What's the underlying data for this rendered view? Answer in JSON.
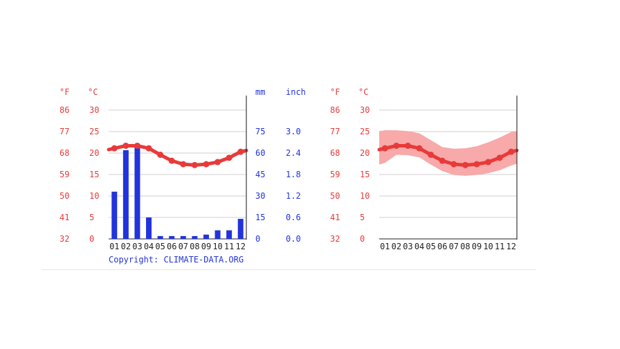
{
  "units": {
    "fahrenheit": "°F",
    "celsius": "°C",
    "mm": "mm",
    "inch": "inch"
  },
  "copyright": "Copyright: CLIMATE-DATA.ORG",
  "colors": {
    "temperature": "#e83a3a",
    "precipitation": "#2233dd",
    "band": "#f8a9a9"
  },
  "chart_data": [
    {
      "type": "bar",
      "categories": [
        "01",
        "02",
        "03",
        "04",
        "05",
        "06",
        "07",
        "08",
        "09",
        "10",
        "11",
        "12"
      ],
      "series": [
        {
          "values": [
            33,
            62,
            64,
            15,
            2,
            2,
            2,
            2,
            3,
            6,
            6,
            14
          ]
        },
        {
          "type": "line",
          "values": [
            21.1,
            21.7,
            21.7,
            21.1,
            19.6,
            18.2,
            17.4,
            17.2,
            17.4,
            17.9,
            18.9,
            20.3
          ]
        }
      ],
      "y_celsius_ticks": [
        "0",
        "5",
        "10",
        "15",
        "20",
        "25",
        "30"
      ],
      "y_fahrenheit_ticks": [
        "32",
        "41",
        "50",
        "59",
        "68",
        "77",
        "86"
      ],
      "y_mm_ticks": [
        "0",
        "15",
        "30",
        "45",
        "60",
        "75"
      ],
      "y_inch_ticks": [
        "0.0",
        "0.6",
        "1.2",
        "1.8",
        "2.4",
        "3.0"
      ],
      "ylim_celsius": [
        0,
        30
      ],
      "ylim_mm": [
        0,
        90
      ],
      "grid": true
    },
    {
      "type": "line",
      "categories": [
        "01",
        "02",
        "03",
        "04",
        "05",
        "06",
        "07",
        "08",
        "09",
        "10",
        "11",
        "12"
      ],
      "series": [
        {
          "values": [
            21.1,
            21.7,
            21.7,
            21.1,
            19.6,
            18.2,
            17.4,
            17.2,
            17.4,
            17.9,
            18.9,
            20.3
          ]
        }
      ],
      "band_max": [
        25.3,
        25.3,
        25.1,
        24.6,
        23.0,
        21.4,
        21.0,
        21.1,
        21.6,
        22.5,
        23.6,
        24.9
      ],
      "band_min": [
        17.7,
        19.6,
        19.5,
        19.0,
        17.3,
        15.8,
        14.9,
        14.7,
        14.9,
        15.3,
        16.0,
        17.1
      ],
      "y_celsius_ticks": [
        "0",
        "5",
        "10",
        "15",
        "20",
        "25",
        "30"
      ],
      "y_fahrenheit_ticks": [
        "32",
        "41",
        "50",
        "59",
        "68",
        "77",
        "86"
      ],
      "ylim_celsius": [
        0,
        30
      ],
      "grid": true
    }
  ]
}
